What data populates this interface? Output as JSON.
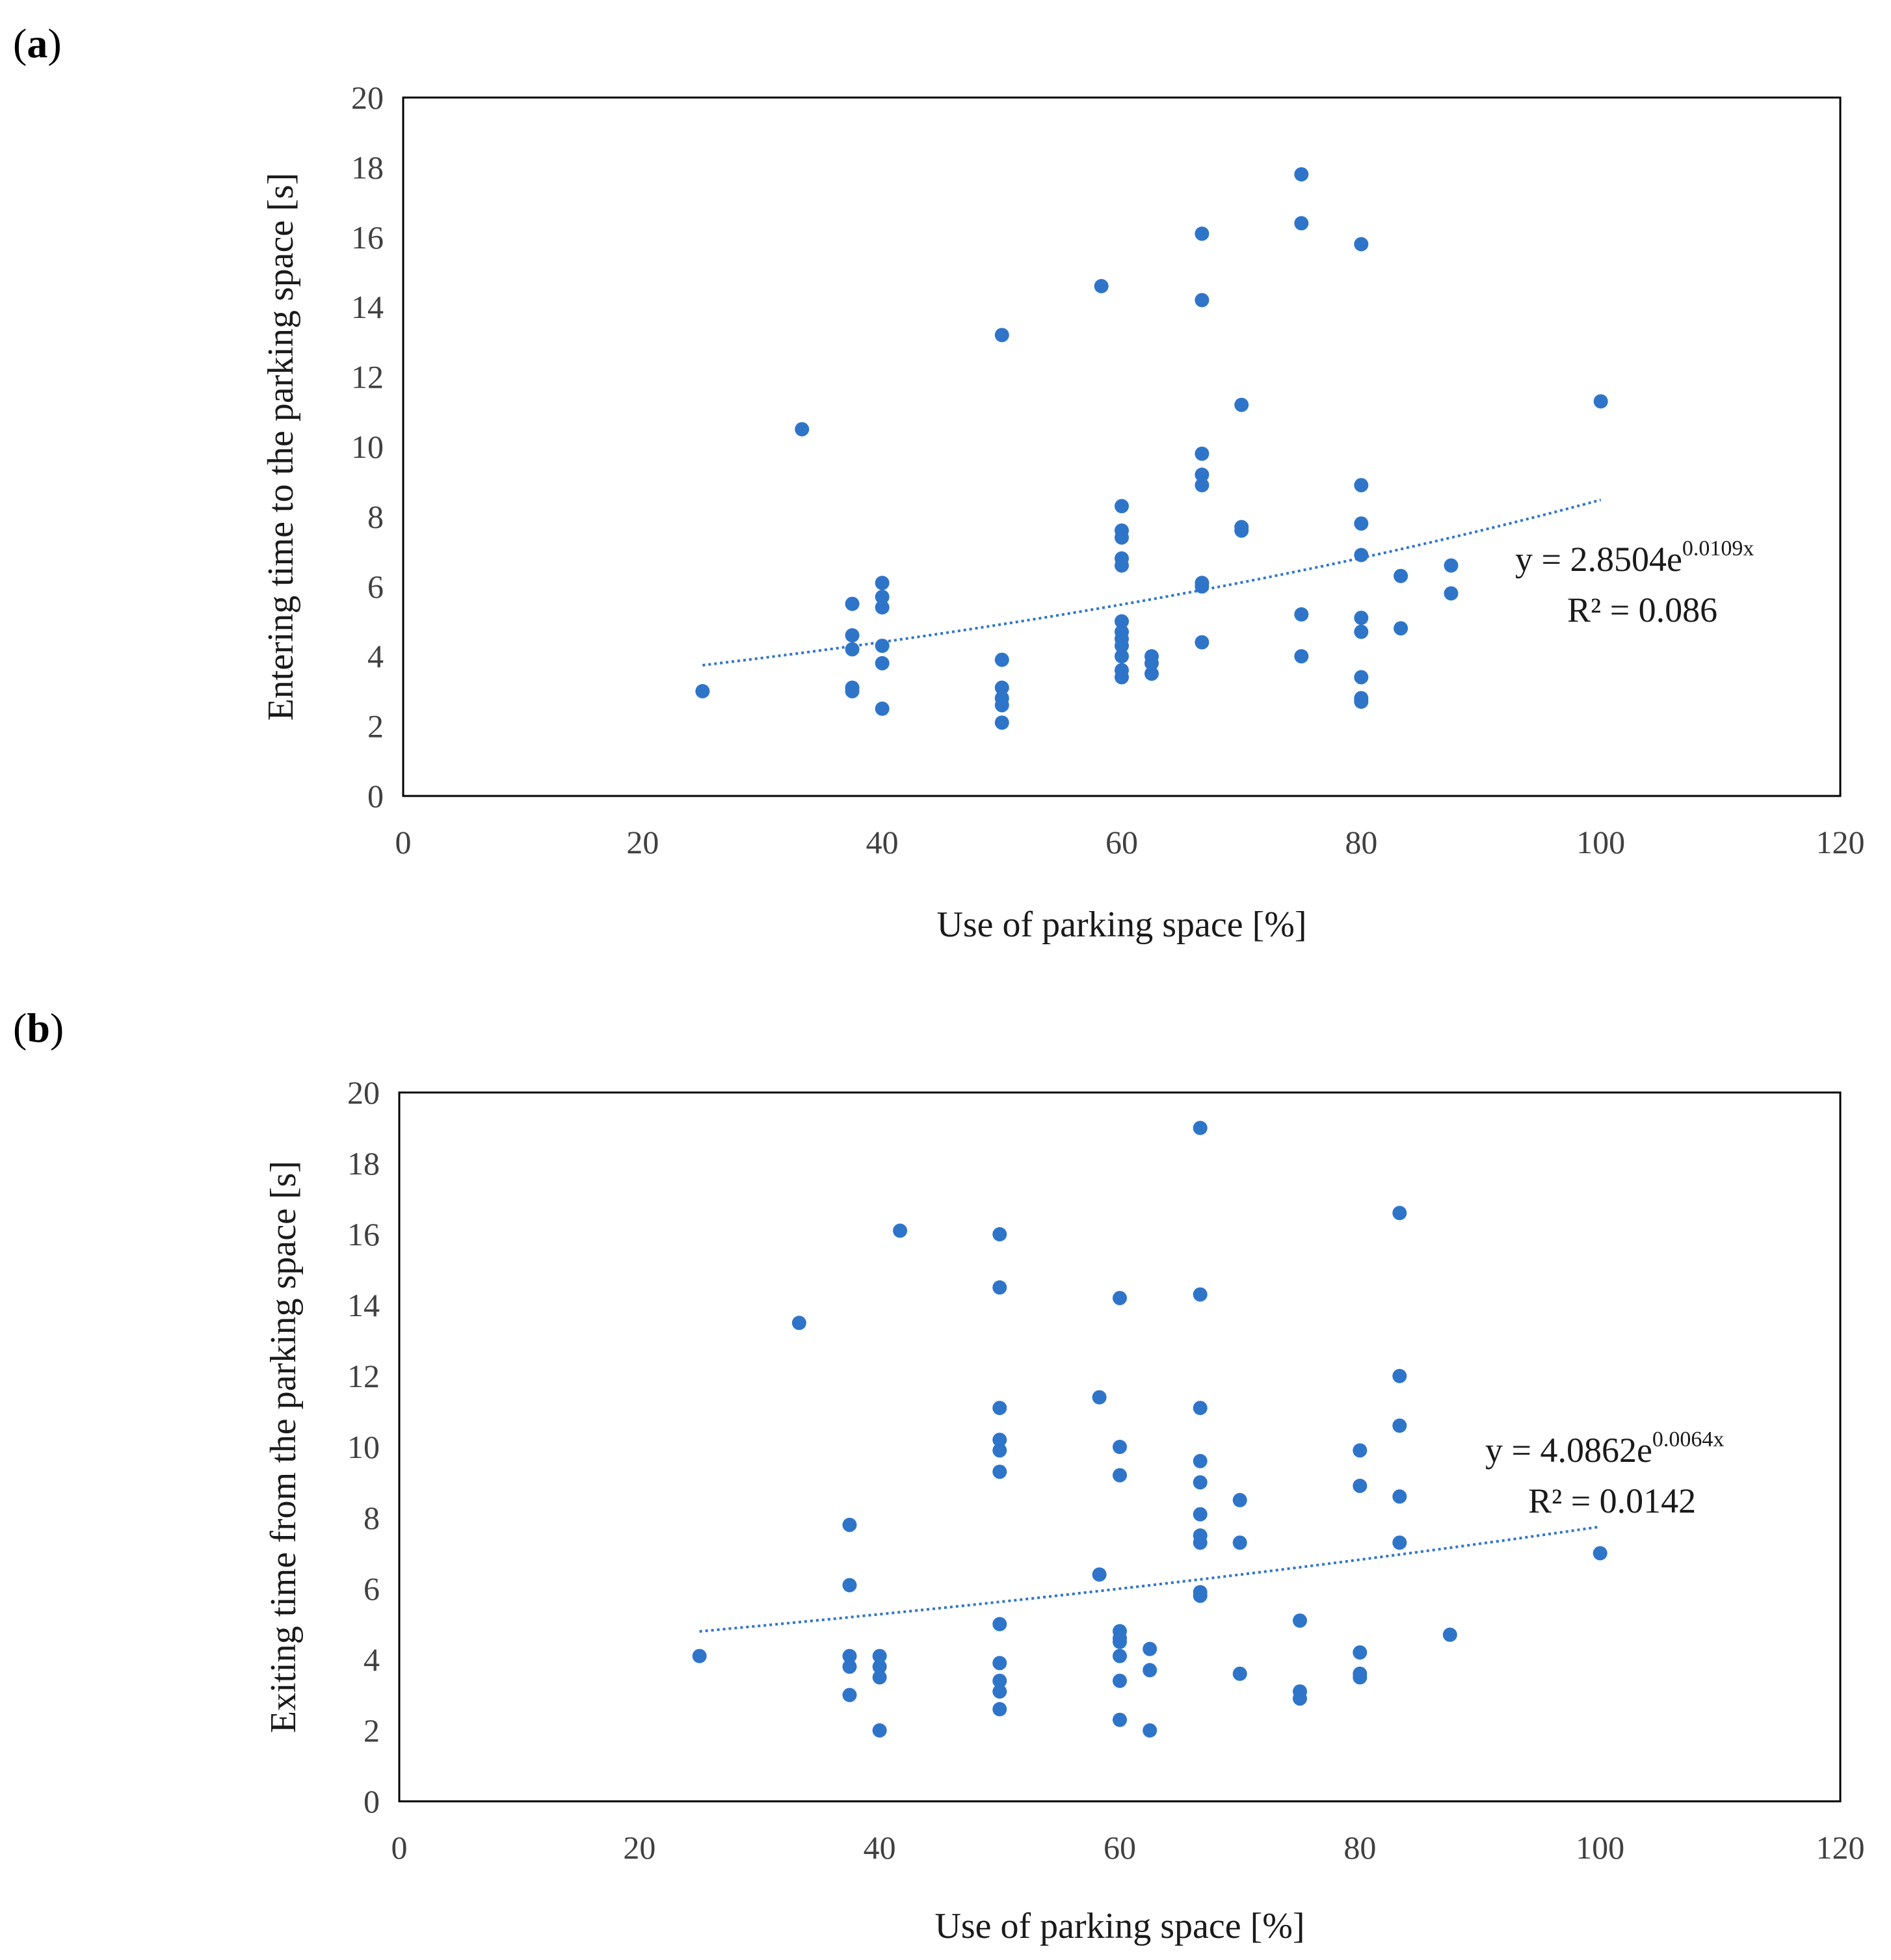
{
  "colors": {
    "marker": "#2E75C9",
    "trendline": "#2E75C9",
    "frame": "#000000",
    "tick_text": "#404040"
  },
  "chart_data": [
    {
      "panel": "a",
      "type": "scatter",
      "title": "",
      "xlabel": "Use of parking space [%]",
      "ylabel": "Entering time to the parking space [s]",
      "xlim": [
        0,
        120
      ],
      "ylim": [
        0,
        20
      ],
      "xticks": [
        0,
        20,
        40,
        60,
        80,
        100,
        120
      ],
      "yticks": [
        0,
        2,
        4,
        6,
        8,
        10,
        12,
        14,
        16,
        18,
        20
      ],
      "grid": false,
      "legend": "none",
      "trendline": {
        "kind": "exponential",
        "a": 2.8504,
        "b": 0.0109,
        "x_range": [
          25,
          100
        ],
        "equation_base": "y = 2.8504e",
        "equation_exp": "0.0109x",
        "r2_label": "R² = 0.086"
      },
      "points": [
        [
          25,
          3.0
        ],
        [
          33.3,
          10.5
        ],
        [
          37.5,
          5.5
        ],
        [
          37.5,
          4.6
        ],
        [
          37.5,
          4.2
        ],
        [
          37.5,
          3.1
        ],
        [
          37.5,
          3.0
        ],
        [
          40,
          6.1
        ],
        [
          40,
          5.7
        ],
        [
          40,
          5.4
        ],
        [
          40,
          4.3
        ],
        [
          40,
          3.8
        ],
        [
          40,
          2.5
        ],
        [
          50,
          13.2
        ],
        [
          50,
          3.9
        ],
        [
          50,
          3.1
        ],
        [
          50,
          2.8
        ],
        [
          50,
          2.6
        ],
        [
          50,
          2.1
        ],
        [
          58.3,
          14.6
        ],
        [
          60,
          8.3
        ],
        [
          60,
          7.6
        ],
        [
          60,
          7.4
        ],
        [
          60,
          6.8
        ],
        [
          60,
          6.6
        ],
        [
          60,
          5.0
        ],
        [
          60,
          4.7
        ],
        [
          60,
          4.5
        ],
        [
          60,
          4.3
        ],
        [
          60,
          4.0
        ],
        [
          60,
          3.6
        ],
        [
          60,
          3.4
        ],
        [
          62.5,
          4.0
        ],
        [
          62.5,
          3.8
        ],
        [
          62.5,
          3.5
        ],
        [
          66.7,
          16.1
        ],
        [
          66.7,
          14.2
        ],
        [
          66.7,
          9.8
        ],
        [
          66.7,
          9.2
        ],
        [
          66.7,
          8.9
        ],
        [
          66.7,
          6.1
        ],
        [
          66.7,
          6.0
        ],
        [
          66.7,
          4.4
        ],
        [
          70,
          11.2
        ],
        [
          70,
          7.7
        ],
        [
          70,
          7.6
        ],
        [
          75,
          17.8
        ],
        [
          75,
          16.4
        ],
        [
          75,
          5.2
        ],
        [
          75,
          4.0
        ],
        [
          80,
          15.8
        ],
        [
          80,
          8.9
        ],
        [
          80,
          7.8
        ],
        [
          80,
          6.9
        ],
        [
          80,
          5.1
        ],
        [
          80,
          4.7
        ],
        [
          80,
          3.4
        ],
        [
          80,
          2.8
        ],
        [
          80,
          2.7
        ],
        [
          83.3,
          6.3
        ],
        [
          83.3,
          4.8
        ],
        [
          87.5,
          6.6
        ],
        [
          87.5,
          5.8
        ],
        [
          100,
          11.3
        ]
      ]
    },
    {
      "panel": "b",
      "type": "scatter",
      "title": "",
      "xlabel": "Use of parking space [%]",
      "ylabel": "Exiting time from the parking space [s]",
      "xlim": [
        0,
        120
      ],
      "ylim": [
        0,
        20
      ],
      "xticks": [
        0,
        20,
        40,
        60,
        80,
        100,
        120
      ],
      "yticks": [
        0,
        2,
        4,
        6,
        8,
        10,
        12,
        14,
        16,
        18,
        20
      ],
      "grid": false,
      "legend": "none",
      "trendline": {
        "kind": "exponential",
        "a": 4.0862,
        "b": 0.0064,
        "x_range": [
          25,
          100
        ],
        "equation_base": "y = 4.0862e",
        "equation_exp": "0.0064x",
        "r2_label": "R² = 0.0142"
      },
      "points": [
        [
          25,
          4.1
        ],
        [
          33.3,
          13.5
        ],
        [
          37.5,
          7.8
        ],
        [
          37.5,
          6.1
        ],
        [
          37.5,
          4.1
        ],
        [
          37.5,
          3.8
        ],
        [
          37.5,
          3.0
        ],
        [
          40,
          4.1
        ],
        [
          40,
          3.8
        ],
        [
          40,
          3.5
        ],
        [
          40,
          2.0
        ],
        [
          41.7,
          16.1
        ],
        [
          50,
          16.0
        ],
        [
          50,
          14.5
        ],
        [
          50,
          11.1
        ],
        [
          50,
          10.2
        ],
        [
          50,
          9.9
        ],
        [
          50,
          9.3
        ],
        [
          50,
          5.0
        ],
        [
          50,
          3.9
        ],
        [
          50,
          3.4
        ],
        [
          50,
          3.1
        ],
        [
          50,
          2.6
        ],
        [
          58.3,
          11.4
        ],
        [
          58.3,
          6.4
        ],
        [
          60,
          14.2
        ],
        [
          60,
          10.0
        ],
        [
          60,
          9.2
        ],
        [
          60,
          4.8
        ],
        [
          60,
          4.6
        ],
        [
          60,
          4.5
        ],
        [
          60,
          4.1
        ],
        [
          60,
          3.4
        ],
        [
          60,
          2.3
        ],
        [
          62.5,
          4.3
        ],
        [
          62.5,
          3.7
        ],
        [
          62.5,
          2.0
        ],
        [
          66.7,
          19.0
        ],
        [
          66.7,
          14.3
        ],
        [
          66.7,
          11.1
        ],
        [
          66.7,
          9.6
        ],
        [
          66.7,
          9.0
        ],
        [
          66.7,
          8.1
        ],
        [
          66.7,
          7.5
        ],
        [
          66.7,
          7.3
        ],
        [
          66.7,
          5.9
        ],
        [
          66.7,
          5.8
        ],
        [
          70,
          8.5
        ],
        [
          70,
          7.3
        ],
        [
          70,
          3.6
        ],
        [
          75,
          5.1
        ],
        [
          75,
          3.1
        ],
        [
          75,
          2.9
        ],
        [
          80,
          9.9
        ],
        [
          80,
          8.9
        ],
        [
          80,
          4.2
        ],
        [
          80,
          3.6
        ],
        [
          80,
          3.5
        ],
        [
          83.3,
          16.6
        ],
        [
          83.3,
          12.0
        ],
        [
          83.3,
          10.6
        ],
        [
          83.3,
          8.6
        ],
        [
          83.3,
          7.3
        ],
        [
          87.5,
          4.7
        ],
        [
          100,
          7.0
        ]
      ]
    }
  ]
}
